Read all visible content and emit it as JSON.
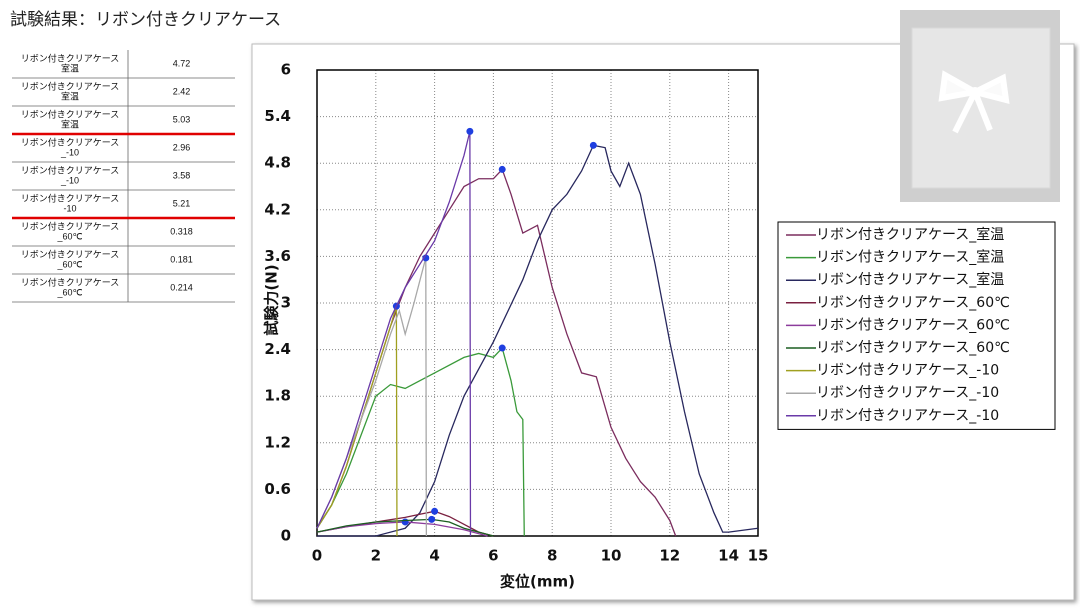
{
  "title": "試験結果：リボン付きクリアケース",
  "table": {
    "rows": [
      {
        "name": [
          "リボン付きクリアケース",
          "室温"
        ],
        "value": 4.72
      },
      {
        "name": [
          "リボン付きクリアケース",
          "室温"
        ],
        "value": 2.42
      },
      {
        "name": [
          "リボン付きクリアケース",
          "室温"
        ],
        "value": 5.03
      },
      {
        "name": [
          "リボン付きクリアケース",
          "_-10"
        ],
        "value": 2.96
      },
      {
        "name": [
          "リボン付きクリアケース",
          "_-10"
        ],
        "value": 3.58
      },
      {
        "name": [
          "リボン付きクリアケース",
          "-10"
        ],
        "value": 5.21
      },
      {
        "name": [
          "リボン付きクリアケース",
          "_60℃"
        ],
        "value": 0.318
      },
      {
        "name": [
          "リボン付きクリアケース",
          "_60℃"
        ],
        "value": 0.181
      },
      {
        "name": [
          "リボン付きクリアケース",
          "_60℃"
        ],
        "value": 0.214
      }
    ]
  },
  "chart_data": {
    "type": "line",
    "x_label": "変位(mm)",
    "y_label": "試験力(N)",
    "xlim": [
      0,
      15
    ],
    "xticks": [
      0,
      2,
      4,
      6,
      8,
      10,
      12,
      14,
      15
    ],
    "ylim": [
      0,
      6
    ],
    "yticks": [
      0,
      0.6,
      1.2,
      1.8,
      2.4,
      3,
      3.6,
      4.2,
      4.8,
      5.4,
      6
    ],
    "grid": true,
    "legend": "right",
    "peak_marker_color": "#1f3fe0",
    "series": [
      {
        "name": "リボン付きクリアケース_室温",
        "color": "#7b2d5e",
        "x": [
          0,
          0.5,
          1,
          1.5,
          2,
          2.5,
          3,
          3.5,
          4,
          4.5,
          5,
          5.5,
          6,
          6.3,
          6.6,
          7,
          7.5,
          8,
          8.5,
          9,
          9.5,
          10,
          10.5,
          11,
          11.5,
          12,
          12.2
        ],
        "values": [
          0.1,
          0.4,
          0.9,
          1.5,
          2.1,
          2.7,
          3.2,
          3.6,
          3.9,
          4.2,
          4.5,
          4.6,
          4.6,
          4.72,
          4.4,
          3.9,
          4.0,
          3.2,
          2.6,
          2.1,
          2.05,
          1.4,
          1.0,
          0.7,
          0.5,
          0.2,
          0
        ]
      },
      {
        "name": "リボン付きクリアケース_室温",
        "color": "#3a9a3a",
        "x": [
          0,
          0.5,
          1,
          1.5,
          2,
          2.5,
          3,
          4,
          5,
          5.5,
          6,
          6.3,
          6.6,
          6.8,
          7,
          7.05
        ],
        "values": [
          0.1,
          0.4,
          0.8,
          1.3,
          1.8,
          1.95,
          1.9,
          2.1,
          2.3,
          2.35,
          2.3,
          2.42,
          2.0,
          1.6,
          1.5,
          0
        ]
      },
      {
        "name": "リボン付きクリアケース_室温",
        "color": "#28285e",
        "x": [
          0,
          1,
          2,
          3,
          3.5,
          4,
          4.5,
          5,
          6,
          7,
          7.5,
          8,
          8.5,
          9,
          9.4,
          9.8,
          10,
          10.3,
          10.6,
          11,
          11.5,
          12,
          12.5,
          13,
          13.5,
          13.8,
          14,
          15
        ],
        "values": [
          0,
          0,
          0,
          0.1,
          0.3,
          0.7,
          1.3,
          1.8,
          2.5,
          3.3,
          3.8,
          4.2,
          4.4,
          4.7,
          5.03,
          5.0,
          4.7,
          4.5,
          4.8,
          4.4,
          3.5,
          2.5,
          1.6,
          0.8,
          0.3,
          0.05,
          0.05,
          0.1
        ]
      },
      {
        "name": "リボン付きクリアケース_60℃",
        "color": "#7a2040",
        "x": [
          0,
          1,
          2,
          3,
          3.5,
          4,
          4.5,
          5,
          5.5,
          6
        ],
        "values": [
          0.05,
          0.12,
          0.18,
          0.24,
          0.28,
          0.318,
          0.25,
          0.15,
          0.05,
          0
        ]
      },
      {
        "name": "リボン付きクリアケース_60℃",
        "color": "#8c3c9c",
        "x": [
          0,
          1,
          2,
          3,
          4,
          5,
          5.8
        ],
        "values": [
          0.05,
          0.12,
          0.16,
          0.181,
          0.15,
          0.08,
          0
        ]
      },
      {
        "name": "リボン付きクリアケース_60℃",
        "color": "#1b5e20",
        "x": [
          0,
          1,
          2,
          3,
          3.9,
          4.5,
          5,
          6
        ],
        "values": [
          0.05,
          0.13,
          0.18,
          0.2,
          0.214,
          0.18,
          0.1,
          0
        ]
      },
      {
        "name": "リボン付きクリアケース_-10",
        "color": "#a0a020",
        "x": [
          0,
          0.5,
          1,
          1.5,
          2,
          2.5,
          2.7,
          2.72
        ],
        "values": [
          0.1,
          0.4,
          0.9,
          1.5,
          2.1,
          2.7,
          2.96,
          0
        ]
      },
      {
        "name": "リボン付きクリアケース_-10",
        "color": "#a8a8a8",
        "x": [
          0,
          0.5,
          1,
          1.5,
          2,
          2.5,
          2.8,
          3,
          3.3,
          3.7,
          3.72
        ],
        "values": [
          0.1,
          0.5,
          1.0,
          1.5,
          2.0,
          2.6,
          2.9,
          2.6,
          3.0,
          3.58,
          0
        ]
      },
      {
        "name": "リボン付きクリアケース_-10",
        "color": "#6a3aa8",
        "x": [
          0,
          0.5,
          1,
          1.5,
          2,
          2.5,
          3,
          3.5,
          4,
          4.5,
          5,
          5.2,
          5.22
        ],
        "values": [
          0.1,
          0.5,
          1.0,
          1.6,
          2.2,
          2.8,
          3.2,
          3.5,
          3.8,
          4.3,
          4.9,
          5.21,
          0
        ]
      }
    ]
  }
}
